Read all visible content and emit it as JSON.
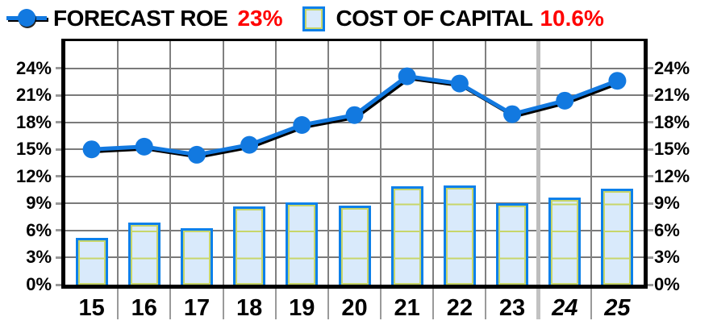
{
  "legend": {
    "roe_label": "FORECAST ROE",
    "roe_value": "23%",
    "coc_label": "COST OF CAPITAL",
    "coc_value": "10.6%",
    "value_color": "#ff0000"
  },
  "chart_data": {
    "type": "combo",
    "title": "",
    "categories": [
      "15",
      "16",
      "17",
      "18",
      "19",
      "20",
      "21",
      "22",
      "23",
      "24",
      "25"
    ],
    "italic_categories": [
      "24",
      "25"
    ],
    "forecast_separator_after_index": 8,
    "series": [
      {
        "name": "FORECAST ROE",
        "type": "line",
        "values": [
          15.0,
          15.3,
          14.4,
          15.5,
          17.7,
          18.8,
          23.1,
          22.3,
          18.9,
          20.4,
          22.6
        ],
        "color": "#1279e0"
      },
      {
        "name": "COST OF CAPITAL",
        "type": "bar",
        "values": [
          5.2,
          6.9,
          6.3,
          8.7,
          9.1,
          8.8,
          10.9,
          11.0,
          9.0,
          9.7,
          10.6
        ],
        "fill": "#d9eafb",
        "border": "#0c80ea",
        "inner_line": "#c8d66a"
      }
    ],
    "ylim": [
      0,
      27
    ],
    "ytick_step": 3,
    "yticks": [
      "0%",
      "3%",
      "6%",
      "9%",
      "12%",
      "15%",
      "18%",
      "21%",
      "24%"
    ],
    "y_axis_sides": "both",
    "grid": true,
    "legend_position": "top"
  },
  "colors": {
    "grid": "#7a7a7a",
    "forecast_separator": "#bdbdbd",
    "axis": "#000000",
    "background": "#ffffff"
  }
}
